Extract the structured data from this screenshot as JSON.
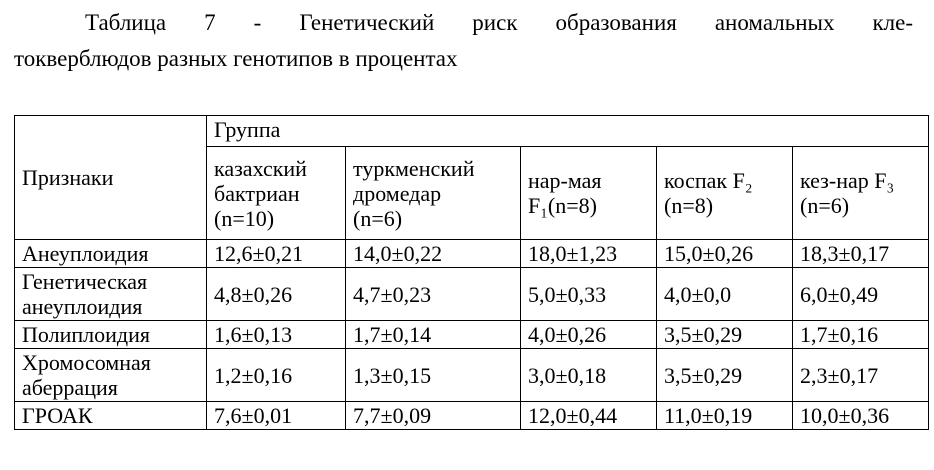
{
  "title": {
    "lines": [
      "Таблица 7 - Генетический риск образования аномальных кле-",
      "токверблюдов разных генотипов в процентах"
    ]
  },
  "table": {
    "row_header": "Признаки",
    "group_header": "Группа",
    "columns": [
      [
        "казахский",
        "бактриан",
        "(n=10)"
      ],
      [
        "туркменский",
        "дромедар",
        "(n=6)"
      ],
      [
        "нар-мая",
        "F₁(n=8)"
      ],
      [
        "коспак F₂",
        "(n=8)"
      ],
      [
        "кез-нар F₃",
        "(n=6)"
      ]
    ],
    "rows": [
      [
        "Анеуплоидия",
        "12,6±0,21",
        "14,0±0,22",
        "18,0±1,23",
        "15,0±0,26",
        "18,3±0,17"
      ],
      [
        "Генетическая анеуплоидия",
        "4,8±0,26",
        "4,7±0,23",
        "5,0±0,33",
        "4,0±0,0",
        "6,0±0,49"
      ],
      [
        "Полиплоидия",
        "1,6±0,13",
        "1,7±0,14",
        "4,0±0,26",
        "3,5±0,29",
        "1,7±0,16"
      ],
      [
        "Хромосомная аберрация",
        "1,2±0,16",
        "1,3±0,15",
        "3,0±0,18",
        "3,5±0,29",
        "2,3±0,17"
      ],
      [
        "ГРОАК",
        "7,6±0,01",
        "7,7±0,09",
        "12,0±0,44",
        "11,0±0,19",
        "10,0±0,36"
      ]
    ]
  }
}
